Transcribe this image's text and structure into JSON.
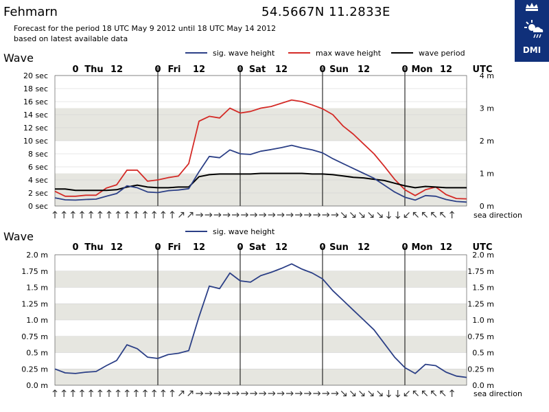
{
  "header": {
    "location": "Fehmarn",
    "coordinates": "54.5667N  11.2833E",
    "subtitle_line1": "Forecast for the period 18 UTC May 9 2012 until 18 UTC May 14 2012",
    "subtitle_line2": "based on latest available data",
    "logo_text": "DMI",
    "logo_icon": "dmi-crown-sun-icon"
  },
  "colors": {
    "sig_wave_height": "#2b3f86",
    "max_wave_height": "#d42a26",
    "wave_period": "#000000",
    "band": "#e6e6e0",
    "logo_bg": "#10307a"
  },
  "time_axis": {
    "labels": [
      "0",
      "Thu",
      "12",
      "0",
      "Fri",
      "12",
      "0",
      "Sat",
      "12",
      "0",
      "Sun",
      "12",
      "0",
      "Mon",
      "12"
    ],
    "unit": "UTC",
    "start": "2012-05-09 18 UTC",
    "end": "2012-05-14 18 UTC"
  },
  "chart_data": [
    {
      "type": "line",
      "panel_title": "Wave",
      "x": [
        0,
        3,
        6,
        9,
        12,
        15,
        18,
        21,
        24,
        27,
        30,
        33,
        36,
        39,
        42,
        45,
        48,
        51,
        54,
        57,
        60,
        63,
        66,
        69,
        72,
        75,
        78,
        81,
        84,
        87,
        90,
        93,
        96,
        99,
        102,
        105,
        108,
        111,
        114,
        117,
        120
      ],
      "x_unit": "hours from 18 UTC May 9 2012",
      "grid": true,
      "left_axis": {
        "ticks": [
          "0 sec",
          "2 sec",
          "4 sec",
          "6 sec",
          "8 sec",
          "10 sec",
          "12 sec",
          "14 sec",
          "16 sec",
          "18 sec",
          "20 sec"
        ],
        "ylim": [
          0,
          20
        ]
      },
      "right_axis": {
        "ticks": [
          "0 m",
          "1 m",
          "2 m",
          "3 m",
          "4 m"
        ],
        "ylim": [
          0,
          4
        ]
      },
      "legend_position": "top",
      "series": [
        {
          "name": "sig. wave height",
          "axis": "right",
          "values": [
            0.25,
            0.19,
            0.18,
            0.2,
            0.21,
            0.3,
            0.38,
            0.62,
            0.56,
            0.43,
            0.41,
            0.47,
            0.49,
            0.53,
            1.05,
            1.52,
            1.48,
            1.72,
            1.6,
            1.58,
            1.68,
            1.73,
            1.79,
            1.86,
            1.78,
            1.72,
            1.63,
            1.45,
            1.3,
            1.15,
            1.0,
            0.85,
            0.64,
            0.43,
            0.27,
            0.18,
            0.32,
            0.3,
            0.2,
            0.14,
            0.12
          ]
        },
        {
          "name": "max wave height",
          "axis": "right",
          "values": [
            0.45,
            0.3,
            0.3,
            0.33,
            0.33,
            0.55,
            0.65,
            1.1,
            1.1,
            0.76,
            0.8,
            0.87,
            0.92,
            1.3,
            2.6,
            2.75,
            2.7,
            3.0,
            2.85,
            2.9,
            3.0,
            3.05,
            3.15,
            3.25,
            3.2,
            3.1,
            2.98,
            2.8,
            2.45,
            2.2,
            1.9,
            1.6,
            1.22,
            0.82,
            0.5,
            0.32,
            0.5,
            0.58,
            0.35,
            0.23,
            0.22
          ]
        },
        {
          "name": "wave period",
          "axis": "left",
          "values": [
            2.6,
            2.6,
            2.4,
            2.4,
            2.4,
            2.4,
            2.5,
            2.9,
            3.2,
            2.9,
            2.8,
            2.8,
            2.9,
            2.9,
            4.5,
            4.8,
            4.9,
            4.9,
            4.9,
            4.9,
            5.0,
            5.0,
            5.0,
            5.0,
            5.0,
            4.9,
            4.9,
            4.8,
            4.6,
            4.4,
            4.3,
            4.1,
            3.9,
            3.5,
            3.1,
            2.8,
            3.0,
            2.9,
            2.8,
            2.8,
            2.8
          ]
        }
      ],
      "sea_direction_label": "sea direction",
      "sea_direction_arrows": [
        "N",
        "N",
        "N",
        "N",
        "N",
        "N",
        "N",
        "N",
        "N",
        "N",
        "N",
        "N",
        "N",
        "N",
        "NE",
        "NE",
        "E",
        "E",
        "E",
        "E",
        "E",
        "E",
        "E",
        "E",
        "E",
        "E",
        "E",
        "E",
        "E",
        "E",
        "E",
        "E",
        "SE",
        "SE",
        "SE",
        "SE",
        "SE",
        "S",
        "S",
        "SW",
        "NW",
        "NW",
        "NW",
        "NW",
        "N"
      ]
    },
    {
      "type": "line",
      "panel_title": "Wave",
      "x": [
        0,
        3,
        6,
        9,
        12,
        15,
        18,
        21,
        24,
        27,
        30,
        33,
        36,
        39,
        42,
        45,
        48,
        51,
        54,
        57,
        60,
        63,
        66,
        69,
        72,
        75,
        78,
        81,
        84,
        87,
        90,
        93,
        96,
        99,
        102,
        105,
        108,
        111,
        114,
        117,
        120
      ],
      "x_unit": "hours from 18 UTC May 9 2012",
      "grid": true,
      "left_axis": {
        "ticks": [
          "0.0 m",
          "0.25 m",
          "0.5 m",
          "0.75 m",
          "1.0 m",
          "1.25 m",
          "1.5 m",
          "1.75 m",
          "2.0 m"
        ],
        "ylim": [
          0,
          2
        ]
      },
      "right_axis": {
        "ticks": [
          "0.0 m",
          "0.25 m",
          "0.5 m",
          "0.75 m",
          "1.0 m",
          "1.25 m",
          "1.5 m",
          "1.75 m",
          "2.0 m"
        ],
        "ylim": [
          0,
          2
        ]
      },
      "legend_position": "top",
      "series": [
        {
          "name": "sig. wave height",
          "axis": "left",
          "values": [
            0.25,
            0.19,
            0.18,
            0.2,
            0.21,
            0.3,
            0.38,
            0.62,
            0.56,
            0.43,
            0.41,
            0.47,
            0.49,
            0.53,
            1.05,
            1.52,
            1.48,
            1.72,
            1.6,
            1.58,
            1.68,
            1.73,
            1.79,
            1.86,
            1.78,
            1.72,
            1.63,
            1.45,
            1.3,
            1.15,
            1.0,
            0.85,
            0.64,
            0.43,
            0.27,
            0.18,
            0.32,
            0.3,
            0.2,
            0.14,
            0.12
          ]
        }
      ],
      "sea_direction_label": "sea direction",
      "sea_direction_arrows": [
        "N",
        "N",
        "N",
        "N",
        "N",
        "N",
        "N",
        "N",
        "N",
        "N",
        "N",
        "N",
        "N",
        "N",
        "NE",
        "NE",
        "E",
        "E",
        "E",
        "E",
        "E",
        "E",
        "E",
        "E",
        "E",
        "E",
        "E",
        "E",
        "E",
        "E",
        "E",
        "E",
        "SE",
        "SE",
        "SE",
        "SE",
        "SE",
        "S",
        "S",
        "SW",
        "NW",
        "NW",
        "NW",
        "NW",
        "N"
      ]
    }
  ]
}
